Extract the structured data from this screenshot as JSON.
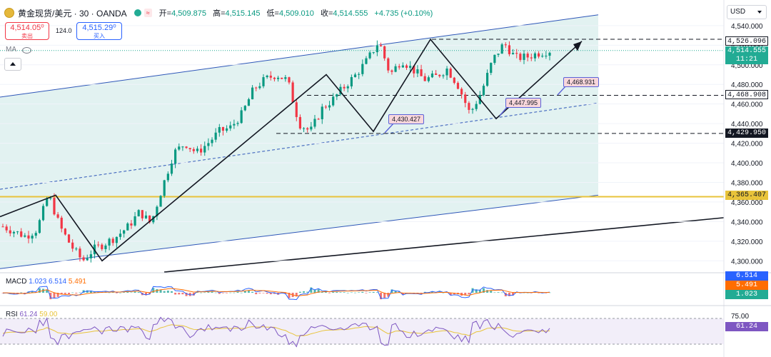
{
  "header": {
    "symbol": "黄金现货/美元 · 30 · OANDA",
    "status_badge": "≈",
    "open_label": "开=",
    "open": "4,509.875",
    "high_label": "高=",
    "high": "4,515.145",
    "low_label": "低=",
    "low": "4,509.010",
    "close_label": "收=",
    "close": "4,514.555",
    "change": "+4.735 (+0.10%)"
  },
  "trade": {
    "sell_price": "4,514.05⁰",
    "sell_label": "卖出",
    "spread": "124.0",
    "buy_price": "4,515.29⁰",
    "buy_label": "买入"
  },
  "ma_label": "MA",
  "currency": "USD",
  "price_labels": {
    "level_1": "4,526.096",
    "current": "4,514.555",
    "countdown": "11:21",
    "level_2": "4,468.908",
    "level_3": "4,429.950",
    "level_4": "4,365.407"
  },
  "flags": {
    "f1": "4,430.427",
    "f2": "4,447.995",
    "f3": "4,468.931"
  },
  "indicators": {
    "macd_name": "MACD",
    "macd_v1": "1.023",
    "macd_v2": "6.514",
    "macd_v3": "5.491",
    "rsi_name": "RSI",
    "rsi_v1": "61.24",
    "rsi_v2": "59.00",
    "rsi_axis_75": "75.00",
    "rsi_right_value": "61.24"
  },
  "colors": {
    "up": "#089981",
    "down": "#f23645",
    "channel_fill": "#dff1ef",
    "support_line": "#e8c33a",
    "macd_line": "#2962ff",
    "signal_line": "#ff6d00",
    "rsi_line": "#7e57c2"
  },
  "chart_data": {
    "type": "candlestick",
    "ylim": [
      4290,
      4545
    ],
    "ticks": [
      4300,
      4320,
      4340,
      4360,
      4380,
      4400,
      4420,
      4440,
      4460,
      4480,
      4500,
      4520,
      4540
    ],
    "tick_labels": [
      "4,300.000",
      "4,320.000",
      "4,340.000",
      "4,360.000",
      "4,380.000",
      "4,400.000",
      "4,420.000",
      "4,440.000",
      "4,460.000",
      "4,480.000",
      "4,500.000",
      "4,520.000",
      "4,540.000"
    ],
    "horizontal_levels": [
      4526.096,
      4468.908,
      4429.95,
      4365.407
    ],
    "price_path": [
      4335,
      4330,
      4325,
      4332,
      4368,
      4335,
      4315,
      4300,
      4312,
      4318,
      4325,
      4335,
      4350,
      4338,
      4375,
      4410,
      4420,
      4410,
      4420,
      4432,
      4436,
      4450,
      4475,
      4485,
      4490,
      4484,
      4440,
      4432,
      4455,
      4465,
      4478,
      4490,
      4505,
      4524,
      4490,
      4505,
      4495,
      4485,
      4488,
      4496,
      4478,
      4450,
      4472,
      4505,
      4522,
      4507,
      4508,
      4512,
      4514.555
    ],
    "zigzag": [
      [
        4345,
        4300
      ],
      [
        4367,
        4300
      ],
      [
        4300,
        4410
      ],
      [
        4410,
        4490
      ],
      [
        4490,
        4432
      ],
      [
        4432,
        4526
      ],
      [
        4526,
        4445
      ],
      [
        4445,
        4524
      ]
    ]
  }
}
